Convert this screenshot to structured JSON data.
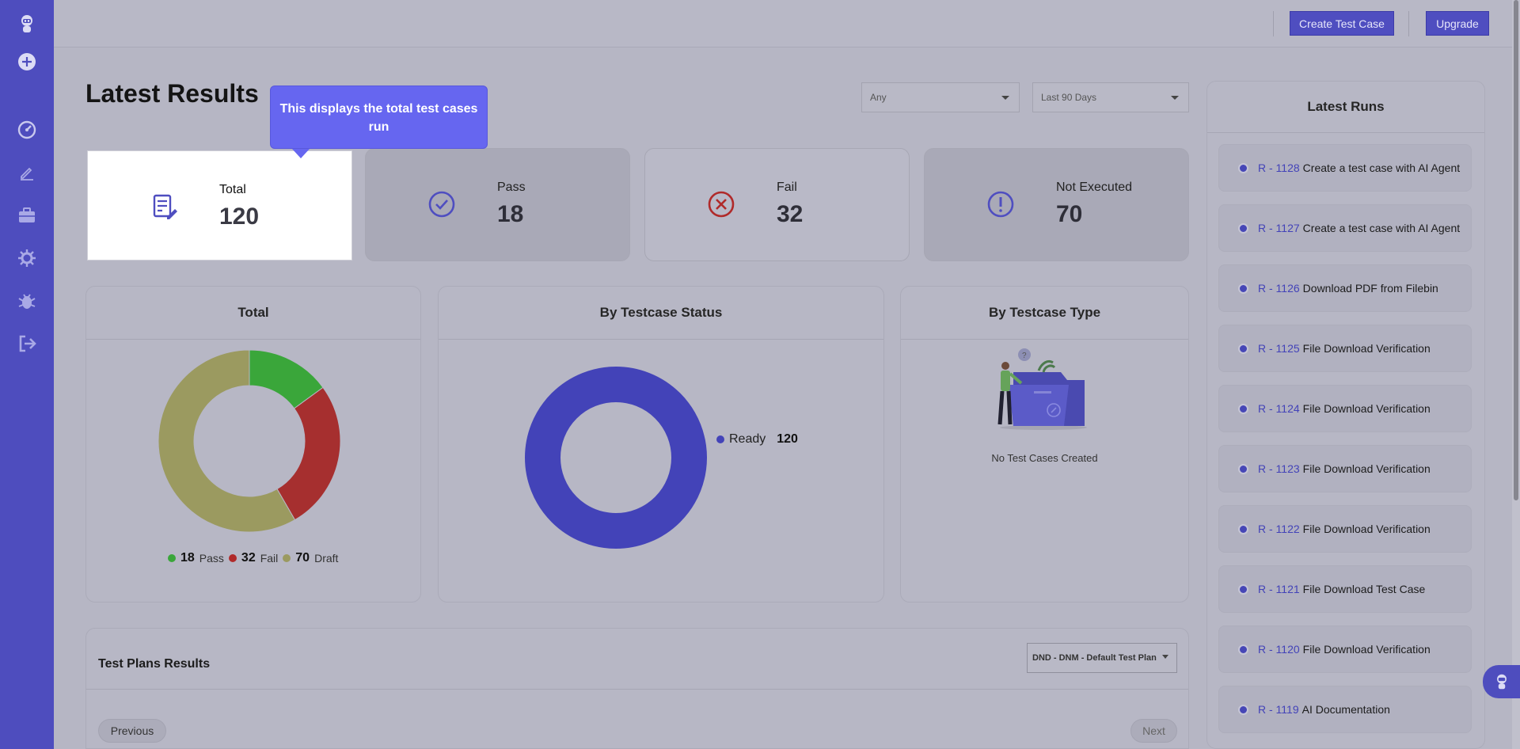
{
  "colors": {
    "sidebar": "#4e4dbe",
    "accent": "#4f4ec0",
    "tooltip": "#6666f0",
    "pass": "#3aa63a",
    "fail": "#a62f2f",
    "draft": "#9b9a60",
    "ready": "#4343b8"
  },
  "sidebar": {
    "icons": [
      "robot-logo-icon",
      "plus-icon",
      "dashboard-gauge-icon",
      "edit-icon",
      "briefcase-icon",
      "settings-gear-icon",
      "bug-icon",
      "logout-icon"
    ]
  },
  "header": {
    "create_label": "Create Test Case",
    "upgrade_label": "Upgrade"
  },
  "page": {
    "title": "Latest Results",
    "filter_any": "Any",
    "filter_period": "Last 90 Days"
  },
  "tooltip": {
    "text": "This displays the total test cases run"
  },
  "stats": [
    {
      "label": "Total",
      "value": "120"
    },
    {
      "label": "Pass",
      "value": "18"
    },
    {
      "label": "Fail",
      "value": "32"
    },
    {
      "label": "Not Executed",
      "value": "70"
    }
  ],
  "panels": {
    "total": {
      "title": "Total",
      "legend": [
        {
          "value": "18",
          "label": "Pass"
        },
        {
          "value": "32",
          "label": "Fail"
        },
        {
          "value": "70",
          "label": "Draft"
        }
      ]
    },
    "by_status": {
      "title": "By Testcase Status",
      "legend": [
        {
          "label": "Ready",
          "value": "120"
        }
      ]
    },
    "by_type": {
      "title": "By Testcase Type",
      "empty_text": "No Test Cases Created"
    }
  },
  "chart_data": [
    {
      "type": "pie",
      "title": "Total",
      "categories": [
        "Pass",
        "Fail",
        "Draft"
      ],
      "values": [
        18,
        32,
        70
      ],
      "colors": [
        "#3aa63a",
        "#a62f2f",
        "#9b9a60"
      ]
    },
    {
      "type": "pie",
      "title": "By Testcase Status",
      "categories": [
        "Ready"
      ],
      "values": [
        120
      ],
      "colors": [
        "#4343b8"
      ]
    }
  ],
  "runs": {
    "title": "Latest Runs",
    "items": [
      {
        "id": "R - 1128",
        "name": "Create a test case with AI Agent"
      },
      {
        "id": "R - 1127",
        "name": "Create a test case with AI Agent"
      },
      {
        "id": "R - 1126",
        "name": "Download PDF from Filebin"
      },
      {
        "id": "R - 1125",
        "name": "File Download Verification"
      },
      {
        "id": "R - 1124",
        "name": "File Download Verification"
      },
      {
        "id": "R - 1123",
        "name": "File Download Verification"
      },
      {
        "id": "R - 1122",
        "name": "File Download Verification"
      },
      {
        "id": "R - 1121",
        "name": "File Download Test Case"
      },
      {
        "id": "R - 1120",
        "name": "File Download Verification"
      },
      {
        "id": "R - 1119",
        "name": "AI Documentation"
      }
    ]
  },
  "plans": {
    "title": "Test Plans Results",
    "selected_plan": "DND - DNM - Default Test Plan",
    "previous_label": "Previous",
    "next_label": "Next"
  }
}
